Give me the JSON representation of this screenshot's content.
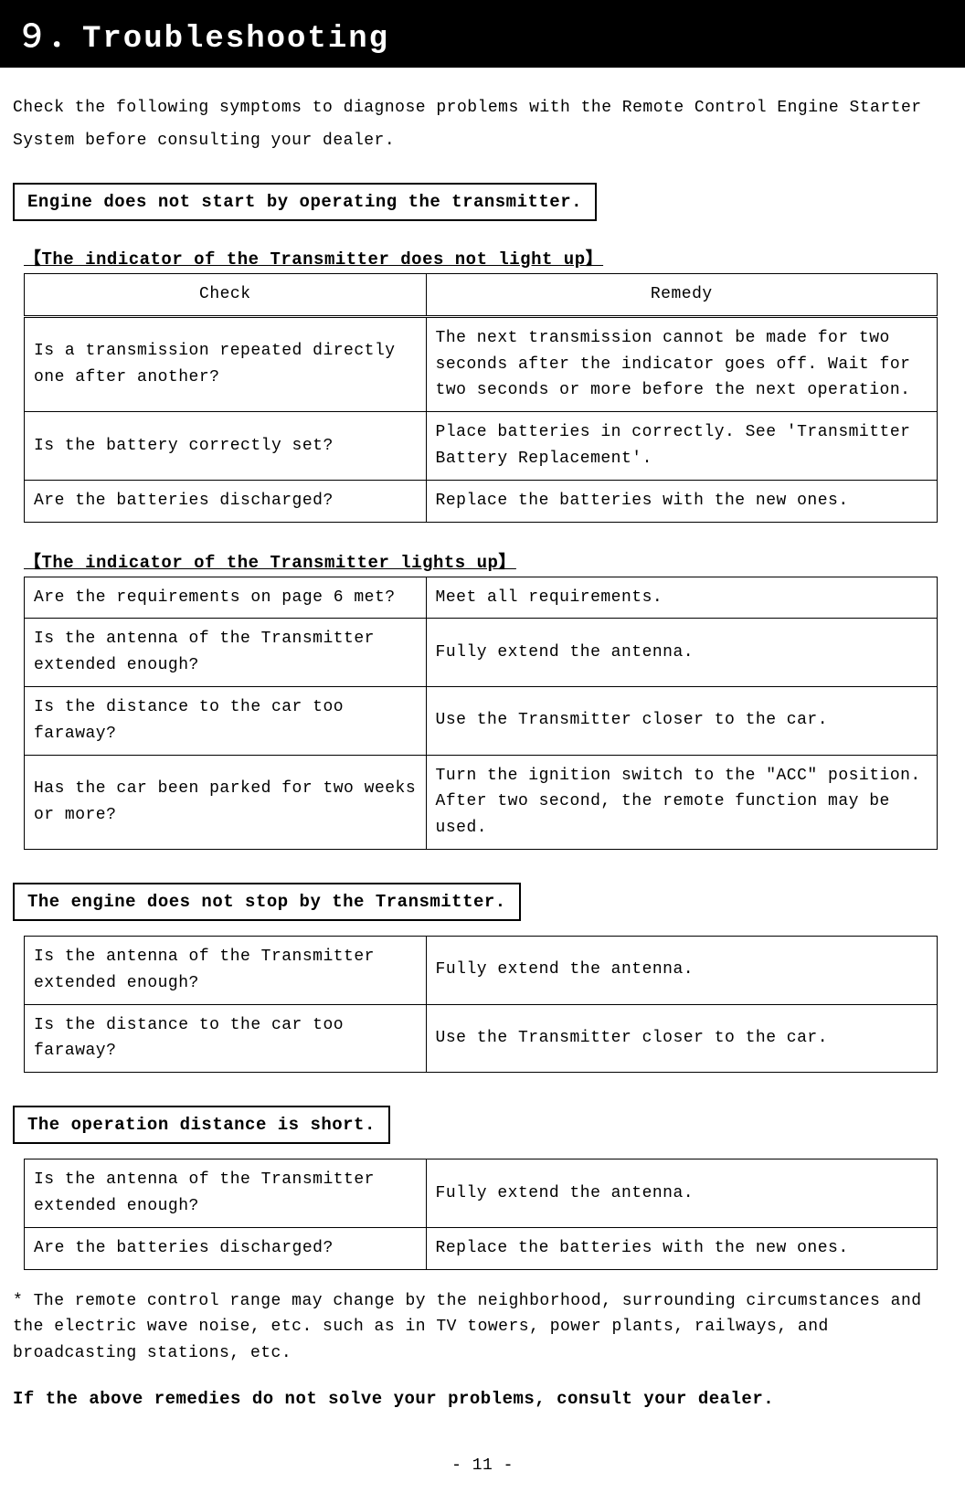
{
  "chapter": "９．Troubleshooting",
  "intro": "Check the following symptoms to diagnose problems with the Remote Control Engine Starter System before consulting your dealer.",
  "section1": {
    "title": "Engine does not start by operating the transmitter.",
    "sub1": {
      "heading": "【The indicator of the Transmitter does not light up】",
      "header_check": "Check",
      "header_remedy": "Remedy",
      "rows": [
        {
          "check": "Is a transmission repeated directly one after another?",
          "remedy": "The next transmission cannot be made for two seconds after the indicator goes off. Wait for two seconds or more before the next operation."
        },
        {
          "check": "Is the battery correctly set?",
          "remedy": "Place batteries in correctly. See 'Transmitter Battery Replacement'."
        },
        {
          "check": "Are the batteries discharged?",
          "remedy": "Replace the batteries with the new ones."
        }
      ]
    },
    "sub2": {
      "heading": "【The indicator of the Transmitter lights up】",
      "rows": [
        {
          "check": "Are the requirements on page 6 met?",
          "remedy": "Meet all requirements."
        },
        {
          "check": "Is the antenna of the Transmitter extended enough?",
          "remedy": "Fully extend the antenna."
        },
        {
          "check": "Is the distance to the car too faraway?",
          "remedy": "Use the Transmitter closer to the car."
        },
        {
          "check": "Has the car been parked for two weeks or more?",
          "remedy": "Turn the ignition switch to the  \"ACC\" position. After two second, the remote function may be used."
        }
      ]
    }
  },
  "section2": {
    "title": "The engine does not stop by the Transmitter.",
    "rows": [
      {
        "check": "Is the antenna of the Transmitter extended enough?",
        "remedy": "Fully extend the antenna."
      },
      {
        "check": "Is the distance to the car too faraway?",
        "remedy": "Use the Transmitter closer to the car."
      }
    ]
  },
  "section3": {
    "title": "The operation distance is short.",
    "rows": [
      {
        "check": "Is the antenna of the Transmitter extended enough?",
        "remedy": "Fully extend the antenna."
      },
      {
        "check": "Are the batteries discharged?",
        "remedy": "Replace the batteries with the new ones."
      }
    ]
  },
  "note": "* The remote control range may change by the neighborhood, surrounding circumstances and the electric wave noise, etc. such as in TV towers, power plants, railways, and broadcasting stations, etc.",
  "final": "If the above remedies do not solve your problems, consult your dealer.",
  "page_number": "- 11 -"
}
